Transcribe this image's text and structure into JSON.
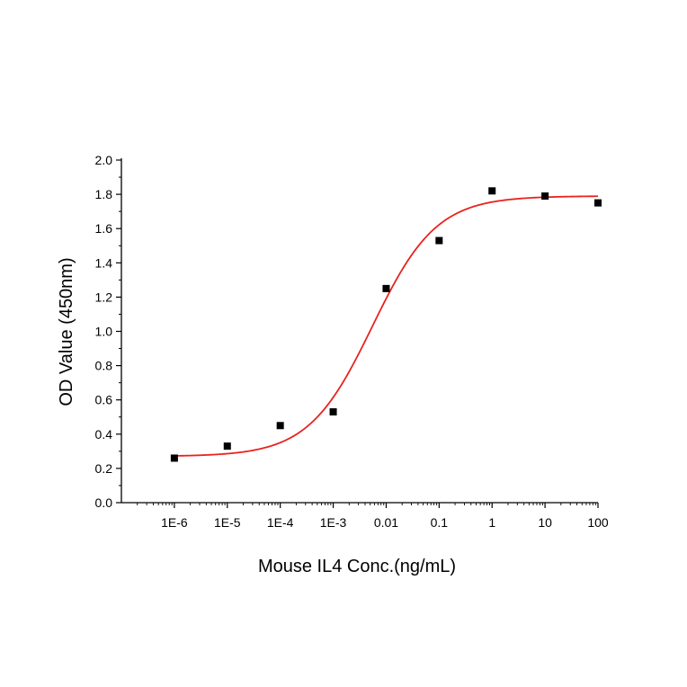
{
  "chart_data": {
    "type": "scatter",
    "title": "",
    "xlabel": "Mouse IL4 Conc.(ng/mL)",
    "ylabel": "OD Value (450nm)",
    "x_scale": "log",
    "xlim": [
      1e-07,
      100
    ],
    "ylim": [
      0,
      2.0
    ],
    "x_ticks": [
      1e-06,
      1e-05,
      0.0001,
      0.001,
      0.01,
      0.1,
      1,
      10,
      100
    ],
    "x_tick_labels": [
      "1E-6",
      "1E-5",
      "1E-4",
      "1E-3",
      "0.01",
      "0.1",
      "1",
      "10",
      "100"
    ],
    "y_ticks": [
      0.0,
      0.2,
      0.4,
      0.6,
      0.8,
      1.0,
      1.2,
      1.4,
      1.6,
      1.8,
      2.0
    ],
    "y_tick_labels": [
      "0.0",
      "0.2",
      "0.4",
      "0.6",
      "0.8",
      "1.0",
      "1.2",
      "1.4",
      "1.6",
      "1.8",
      "2.0"
    ],
    "grid": false,
    "legend": "none",
    "series": [
      {
        "marker": "square",
        "color": "#000000",
        "x": [
          1e-06,
          1e-05,
          0.0001,
          0.001,
          0.01,
          0.1,
          1,
          10,
          100
        ],
        "y": [
          0.26,
          0.33,
          0.45,
          0.53,
          1.25,
          1.53,
          1.82,
          1.79,
          1.75
        ]
      }
    ],
    "fit_curve": {
      "type": "4PL",
      "color": "#e8231f",
      "bottom": 0.27,
      "top": 1.79,
      "ec50": 0.0055,
      "hill": 0.72,
      "x_range": [
        1e-06,
        100
      ]
    }
  }
}
